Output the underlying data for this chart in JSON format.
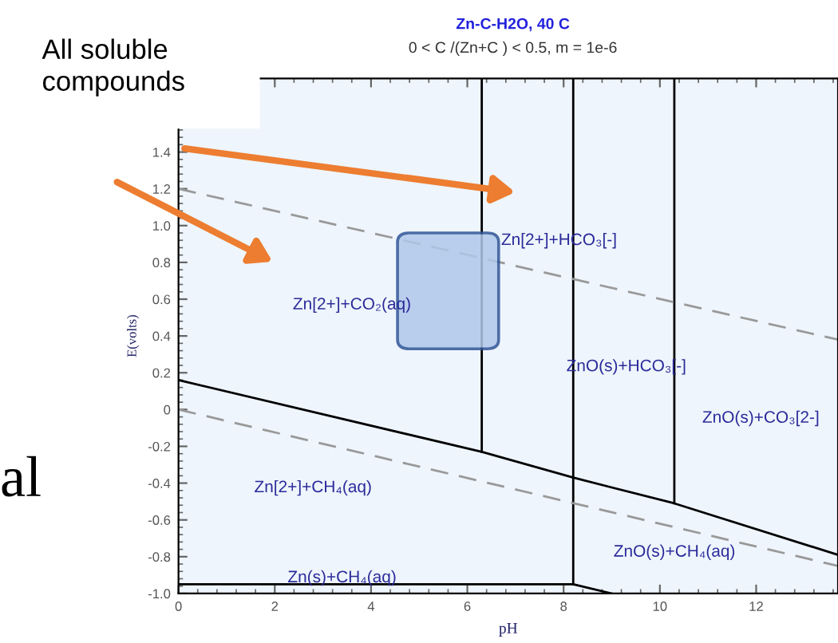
{
  "chart_data": {
    "type": "line",
    "title": "Zn-C-H2O, 40 C",
    "subtitle": "0 < C /(Zn+C ) < 0.5, m = 1e-6",
    "xlabel": "pH",
    "ylabel": "E(volts)",
    "xlim": [
      0,
      13.7
    ],
    "ylim": [
      -1.0,
      1.8
    ],
    "xticks": [
      0,
      2,
      4,
      6,
      8,
      10,
      12
    ],
    "yticks": [
      {
        "value": -1.0,
        "label": "-1.0"
      },
      -0.8,
      -0.6,
      -0.4,
      -0.2,
      0,
      0.2,
      0.4,
      0.6,
      0.8,
      {
        "value": 1.0,
        "label": "1.0"
      },
      1.2,
      1.4
    ],
    "grid": false,
    "marker": "none",
    "series": [
      {
        "color": "#000000",
        "line_style": "solid",
        "x": [
          0,
          6.3,
          8.2,
          10.3,
          13.7
        ],
        "values": [
          0.16,
          -0.23,
          -0.37,
          -0.51,
          -0.79
        ]
      },
      {
        "color": "#000000",
        "line_style": "solid",
        "x": [
          6.3,
          6.3
        ],
        "values": [
          -0.23,
          1.8
        ]
      },
      {
        "color": "#000000",
        "line_style": "solid",
        "x": [
          8.2,
          8.2
        ],
        "values": [
          -0.95,
          1.8
        ]
      },
      {
        "color": "#000000",
        "line_style": "solid",
        "x": [
          10.3,
          10.3
        ],
        "values": [
          -0.51,
          1.8
        ]
      },
      {
        "color": "#000000",
        "line_style": "solid",
        "x": [
          0,
          8.2,
          9.0
        ],
        "values": [
          -0.95,
          -0.95,
          -1.0
        ]
      },
      {
        "color": "#999999",
        "line_style": "dashed",
        "x": [
          0,
          13.7
        ],
        "values": [
          1.2,
          0.38
        ]
      },
      {
        "color": "#999999",
        "line_style": "dashed",
        "x": [
          0,
          13.7
        ],
        "values": [
          0,
          -0.85
        ]
      }
    ],
    "annotations": [
      "Zn[2+]+HCO₃[-]",
      "Zn[2+]+CO₂(aq)",
      "ZnO(s)+HCO₃[-]",
      "ZnO(s)+CO₃[2-]",
      "Zn[2+]+CH₄(aq)",
      "ZnO(s)+CH₄(aq)",
      "Zn(s)+CH₄(aq)",
      "All soluble\ncompounds",
      "al"
    ]
  }
}
